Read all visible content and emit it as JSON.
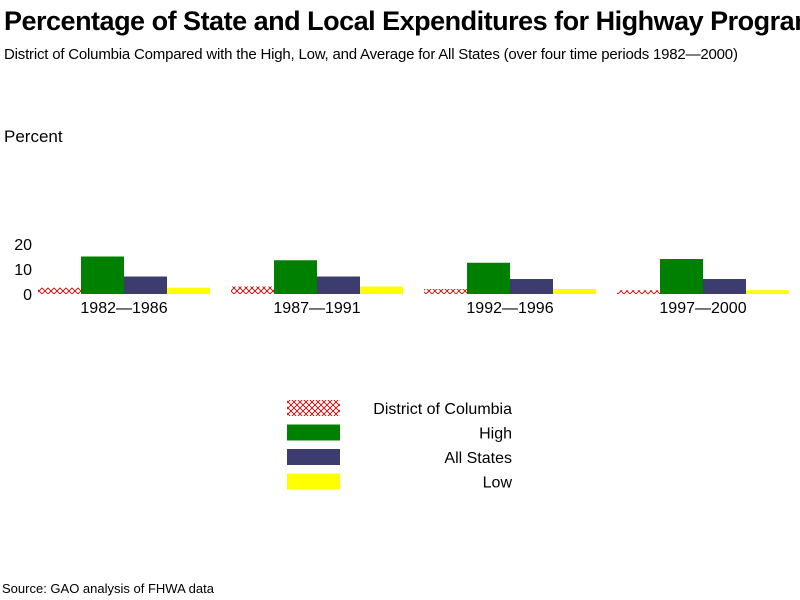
{
  "chart_data": {
    "type": "bar",
    "title": "Percentage of State and Local Expenditures for Highway Programs",
    "subtitle": "District of Columbia Compared with the High, Low, and Average for All States (over four time periods 1982—2000)",
    "ylabel": "Percent",
    "xlabel": "",
    "ylim": [
      0,
      20
    ],
    "yticks": [
      0,
      10,
      20
    ],
    "categories": [
      "1982—1986",
      "1987—1991",
      "1992—1996",
      "1997—2000"
    ],
    "series": [
      {
        "name": "District of Columbia",
        "values": [
          2.5,
          3,
          2,
          1.5
        ],
        "color": "#d00000",
        "pattern": "crosshatch"
      },
      {
        "name": "High",
        "values": [
          15,
          13.5,
          12.5,
          14
        ],
        "color": "#008000",
        "pattern": "solid"
      },
      {
        "name": "All States",
        "values": [
          7,
          7,
          6,
          6
        ],
        "color": "#3c3c6e",
        "pattern": "solid"
      },
      {
        "name": "Low",
        "values": [
          2.5,
          3,
          2,
          1.5
        ],
        "color": "#ffff00",
        "pattern": "solid"
      }
    ],
    "grid": false,
    "legend_position": "bottom-center"
  },
  "source": "Source: GAO analysis of FHWA data"
}
